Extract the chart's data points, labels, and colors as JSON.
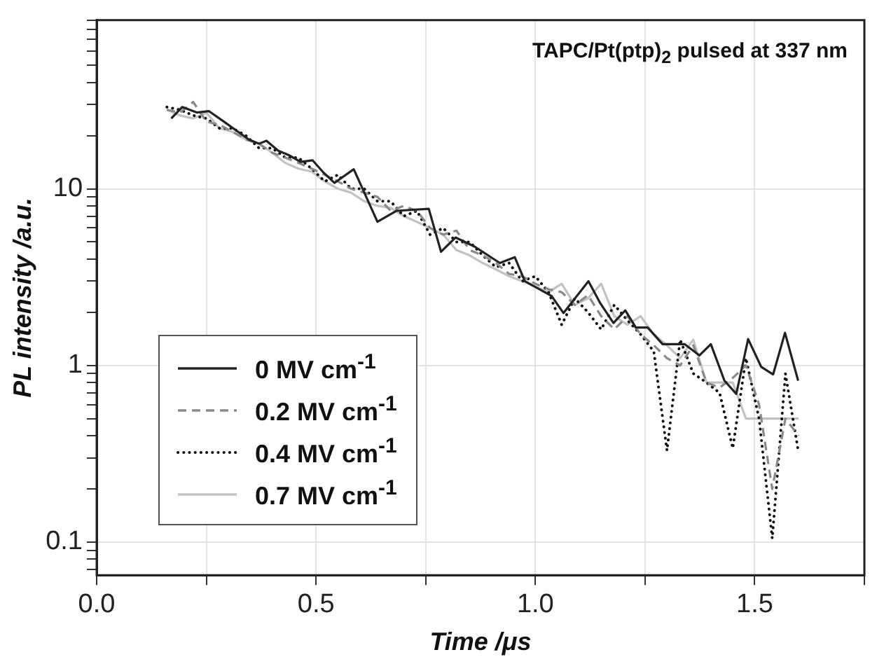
{
  "chart_data": {
    "type": "line",
    "title": "TAPC/Pt(ptp)$_{2}$ pulsed at 337 nm",
    "xlabel": "Time /μs",
    "ylabel": "PL intensity /a.u.",
    "x": [
      0.16,
      0.19,
      0.22,
      0.25,
      0.28,
      0.31,
      0.34,
      0.37,
      0.4,
      0.43,
      0.46,
      0.49,
      0.52,
      0.55,
      0.58,
      0.61,
      0.64,
      0.67,
      0.7,
      0.73,
      0.76,
      0.79,
      0.82,
      0.85,
      0.88,
      0.91,
      0.94,
      0.97,
      1.0,
      1.03,
      1.06,
      1.09,
      1.12,
      1.15,
      1.18,
      1.21,
      1.24,
      1.27,
      1.3,
      1.33,
      1.36,
      1.39,
      1.42,
      1.45,
      1.48,
      1.51,
      1.54,
      1.57,
      1.6
    ],
    "series": [
      {
        "name": "0 MV cm$^{-1}$",
        "color": "#222222",
        "line_style": "solid",
        "x": [
          0.17,
          0.195,
          0.229,
          0.256,
          0.29,
          0.347,
          0.37,
          0.387,
          0.414,
          0.438,
          0.465,
          0.492,
          0.515,
          0.542,
          0.586,
          0.64,
          0.683,
          0.757,
          0.785,
          0.818,
          0.862,
          0.919,
          0.953,
          0.976,
          1.037,
          1.064,
          1.121,
          1.148,
          1.178,
          1.205,
          1.229,
          1.256,
          1.29,
          1.34,
          1.374,
          1.4,
          1.431,
          1.458,
          1.485,
          1.515,
          1.542,
          1.569,
          1.599
        ],
        "values": [
          25,
          29,
          27,
          27.5,
          24,
          19,
          18,
          18.7,
          16.4,
          15.5,
          14.2,
          14.5,
          12.5,
          10.8,
          12.9,
          6.5,
          7.5,
          7.7,
          4.4,
          5.3,
          4.7,
          3.8,
          4.1,
          3.0,
          2.47,
          1.98,
          3.0,
          2.25,
          1.74,
          2.05,
          1.64,
          1.64,
          1.32,
          1.32,
          1.14,
          1.32,
          0.82,
          0.69,
          1.41,
          0.98,
          0.89,
          1.53,
          0.82
        ]
      },
      {
        "name": "0.2 MV cm$^{-1}$",
        "color": "#8a8a8a",
        "line_style": "dashed",
        "values": [
          28,
          27,
          31,
          24,
          23,
          21,
          19,
          18,
          16,
          15,
          14,
          13,
          12,
          11,
          10,
          9.5,
          9,
          7.5,
          8,
          7.5,
          6,
          5.5,
          5.8,
          4.5,
          4.2,
          3.8,
          3.3,
          3.2,
          2.9,
          2.7,
          2.6,
          2.2,
          2.5,
          1.9,
          1.6,
          1.9,
          1.5,
          1.3,
          1.1,
          1.0,
          1.3,
          0.8,
          0.75,
          0.85,
          1.0,
          0.6,
          0.2,
          0.5,
          0.4
        ]
      },
      {
        "name": "0.4 MV cm$^{-1}$",
        "color": "#111111",
        "line_style": "dotted",
        "values": [
          29,
          28,
          26,
          25,
          22,
          22,
          20,
          17,
          17,
          15,
          15,
          13,
          11,
          12,
          10,
          10,
          8.5,
          8.5,
          7,
          7.5,
          5.5,
          6,
          5,
          5,
          4.2,
          3.6,
          3.8,
          3.0,
          3.2,
          2.6,
          1.7,
          2.4,
          2.0,
          1.6,
          2.2,
          1.8,
          1.5,
          1.2,
          0.33,
          1.4,
          0.9,
          0.8,
          0.7,
          0.34,
          1.1,
          0.5,
          0.105,
          0.9,
          0.32
        ]
      },
      {
        "name": "0.7 MV cm$^{-1}$",
        "color": "#c2c2c2",
        "line_style": "solid",
        "values": [
          28,
          26,
          25,
          27,
          22,
          21,
          19,
          18,
          16,
          14,
          13,
          12.5,
          11,
          10,
          9.5,
          8.5,
          8,
          7.8,
          7,
          6.5,
          6,
          5.5,
          4.5,
          4.2,
          3.8,
          3.5,
          3.2,
          3.0,
          2.8,
          2.6,
          2.9,
          2.2,
          2.4,
          2.9,
          1.9,
          1.7,
          1.9,
          1.5,
          1.3,
          1.1,
          1.4,
          0.8,
          0.8,
          0.8,
          0.5,
          0.5,
          0.5,
          0.5,
          0.5
        ]
      }
    ],
    "xlim": [
      0,
      1.75
    ],
    "xticks": [
      {
        "value": 0,
        "label": "0.0"
      },
      {
        "value": 0.25,
        "label": null
      },
      {
        "value": 0.5,
        "label": "0.5"
      },
      {
        "value": 0.75,
        "label": null
      },
      {
        "value": 1,
        "label": "1.0"
      },
      {
        "value": 1.25,
        "label": null
      },
      {
        "value": 1.5,
        "label": "1.5"
      },
      {
        "value": 1.75,
        "label": null
      }
    ],
    "ylim": [
      0.065,
      90
    ],
    "yticks": [
      {
        "value": 0.07,
        "label": null
      },
      {
        "value": 0.08,
        "label": null
      },
      {
        "value": 0.09,
        "label": null
      },
      0.1,
      {
        "value": 0.2,
        "label": null
      },
      {
        "value": 0.3,
        "label": null
      },
      {
        "value": 0.4,
        "label": null
      },
      {
        "value": 0.5,
        "label": null
      },
      {
        "value": 0.6,
        "label": null
      },
      {
        "value": 0.7,
        "label": null
      },
      {
        "value": 0.8,
        "label": null
      },
      {
        "value": 0.9,
        "label": null
      },
      1,
      {
        "value": 2,
        "label": null
      },
      {
        "value": 3,
        "label": null
      },
      {
        "value": 4,
        "label": null
      },
      {
        "value": 5,
        "label": null
      },
      {
        "value": 6,
        "label": null
      },
      {
        "value": 7,
        "label": null
      },
      {
        "value": 8,
        "label": null
      },
      {
        "value": 9,
        "label": null
      },
      10,
      {
        "value": 20,
        "label": null
      },
      {
        "value": 30,
        "label": null
      },
      {
        "value": 40,
        "label": null
      },
      {
        "value": 50,
        "label": null
      },
      {
        "value": 60,
        "label": null
      },
      {
        "value": 70,
        "label": null
      },
      {
        "value": 80,
        "label": null
      },
      {
        "value": 90,
        "label": null
      }
    ],
    "log": "y",
    "grid": true,
    "legend": "bottom left",
    "marker": "none"
  }
}
